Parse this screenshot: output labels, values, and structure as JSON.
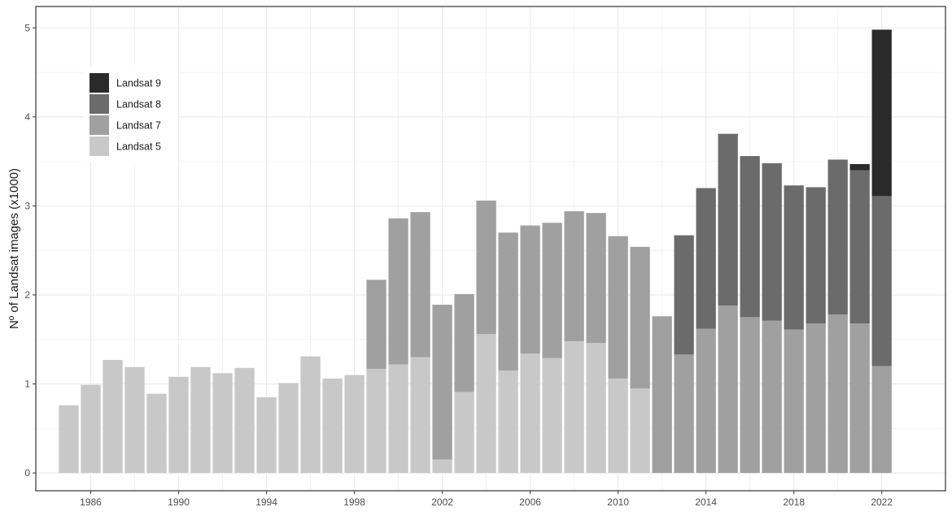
{
  "chart_data": {
    "type": "bar",
    "stacked": true,
    "title": "",
    "xlabel": "",
    "ylabel": "Nº of Landsat images (x1000)",
    "xlim": [
      1983.5,
      2024.9
    ],
    "ylim": [
      -0.2,
      5.24
    ],
    "x_ticks": [
      1986,
      1990,
      1994,
      1998,
      2002,
      2006,
      2010,
      2014,
      2018,
      2022
    ],
    "y_ticks": [
      0,
      1,
      2,
      3,
      4,
      5
    ],
    "grid": true,
    "legend_position": "top-left",
    "x": [
      1985,
      1986,
      1987,
      1988,
      1989,
      1990,
      1991,
      1992,
      1993,
      1994,
      1995,
      1996,
      1997,
      1998,
      1999,
      2000,
      2001,
      2002,
      2003,
      2004,
      2005,
      2006,
      2007,
      2008,
      2009,
      2010,
      2011,
      2012,
      2013,
      2014,
      2015,
      2016,
      2017,
      2018,
      2019,
      2020,
      2021,
      2022
    ],
    "series": [
      {
        "name": "Landsat 5",
        "color": "#c8c8c8",
        "values": [
          0.76,
          0.99,
          1.27,
          1.19,
          0.89,
          1.08,
          1.19,
          1.12,
          1.18,
          0.85,
          1.01,
          1.31,
          1.06,
          1.1,
          1.17,
          1.22,
          1.3,
          0.15,
          0.91,
          1.56,
          1.15,
          1.34,
          1.29,
          1.48,
          1.46,
          1.06,
          0.95,
          0,
          0,
          0,
          0,
          0,
          0,
          0,
          0,
          0,
          0,
          0
        ]
      },
      {
        "name": "Landsat 7",
        "color": "#a0a0a0",
        "values": [
          0,
          0,
          0,
          0,
          0,
          0,
          0,
          0,
          0,
          0,
          0,
          0,
          0,
          0,
          1.0,
          1.64,
          1.63,
          1.74,
          1.1,
          1.5,
          1.55,
          1.44,
          1.52,
          1.46,
          1.46,
          1.6,
          1.59,
          1.76,
          1.33,
          1.62,
          1.88,
          1.75,
          1.71,
          1.61,
          1.68,
          1.78,
          1.68,
          1.2
        ]
      },
      {
        "name": "Landsat 8",
        "color": "#6b6b6b",
        "values": [
          0,
          0,
          0,
          0,
          0,
          0,
          0,
          0,
          0,
          0,
          0,
          0,
          0,
          0,
          0,
          0,
          0,
          0,
          0,
          0,
          0,
          0,
          0,
          0,
          0,
          0,
          0,
          0,
          1.34,
          1.58,
          1.93,
          1.81,
          1.77,
          1.62,
          1.53,
          1.74,
          1.72,
          1.91
        ]
      },
      {
        "name": "Landsat 9",
        "color": "#2a2a2a",
        "values": [
          0,
          0,
          0,
          0,
          0,
          0,
          0,
          0,
          0,
          0,
          0,
          0,
          0,
          0,
          0,
          0,
          0,
          0,
          0,
          0,
          0,
          0,
          0,
          0,
          0,
          0,
          0,
          0,
          0,
          0,
          0,
          0,
          0,
          0,
          0,
          0,
          0.07,
          1.87
        ]
      }
    ],
    "legend_order": [
      "Landsat 9",
      "Landsat 8",
      "Landsat 7",
      "Landsat 5"
    ]
  },
  "colors": {
    "panel_border": "#333333",
    "grid": "#ebebeb",
    "tick_text": "#4d4d4d",
    "axis_title": "#1a1a1a"
  }
}
